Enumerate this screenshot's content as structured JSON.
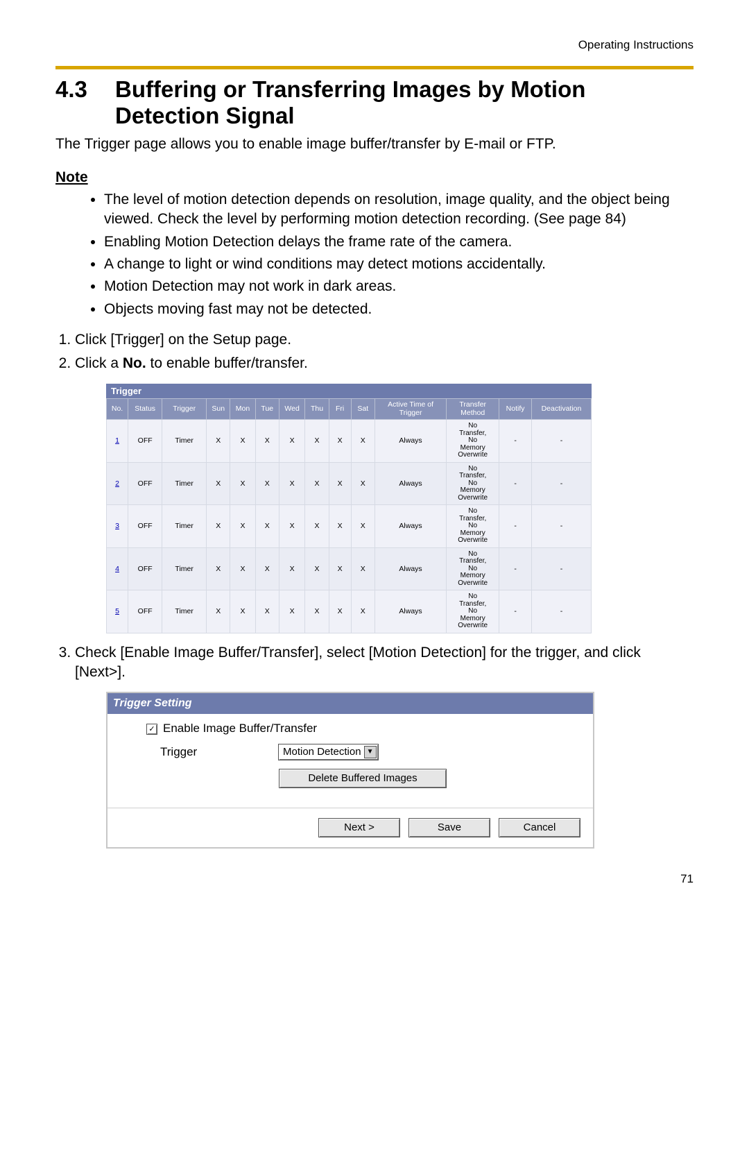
{
  "header": {
    "running_head": "Operating Instructions"
  },
  "section": {
    "number": "4.3",
    "title": "Buffering or Transferring Images by Motion Detection Signal"
  },
  "intro": "The Trigger page allows you to enable image buffer/transfer by E-mail or FTP.",
  "note_label": "Note",
  "notes": [
    "The level of motion detection depends on resolution, image quality, and the object being viewed. Check the level by performing motion detection recording. (See page 84)",
    "Enabling Motion Detection delays the frame rate of the camera.",
    "A change to light or wind conditions may detect motions accidentally.",
    "Motion Detection may not work in dark areas.",
    "Objects moving fast may not be detected."
  ],
  "step1": "Click [Trigger] on the Setup page.",
  "step2_a": "Click a ",
  "step2_b": "No.",
  "step2_c": " to enable buffer/transfer.",
  "step3": "Check [Enable Image Buffer/Transfer], select [Motion Detection] for the trigger, and click [Next>].",
  "trigger_table": {
    "title": "Trigger",
    "columns": [
      "No.",
      "Status",
      "Trigger",
      "Sun",
      "Mon",
      "Tue",
      "Wed",
      "Thu",
      "Fri",
      "Sat",
      "Active Time of Trigger",
      "Transfer Method",
      "Notify",
      "Deactivation"
    ],
    "row_numbers": [
      "1",
      "2",
      "3",
      "4",
      "5"
    ],
    "status": "OFF",
    "trigger_val": "Timer",
    "day_val": "X",
    "active": "Always",
    "transfer_method_lines": [
      "No",
      "Transfer,",
      "No",
      "Memory",
      "Overwrite"
    ],
    "notify": "-",
    "deactivation": "-",
    "col_widths": [
      "22",
      "40",
      "52",
      "28",
      "28",
      "28",
      "28",
      "28",
      "26",
      "28",
      "84",
      "62",
      "38",
      "70"
    ],
    "header_bg": "#8792b8",
    "title_bg": "#6d7bac",
    "row_odd_bg": "#f0f1f8",
    "row_even_bg": "#eaecf4"
  },
  "setting_panel": {
    "title": "Trigger Setting",
    "enable_label": "Enable Image Buffer/Transfer",
    "checked": true,
    "trigger_label": "Trigger",
    "select_value": "Motion Detection",
    "delete_btn": "Delete Buffered Images",
    "next_btn": "Next >",
    "save_btn": "Save",
    "cancel_btn": "Cancel",
    "title_bg": "#6d7bac"
  },
  "page_number": "71"
}
